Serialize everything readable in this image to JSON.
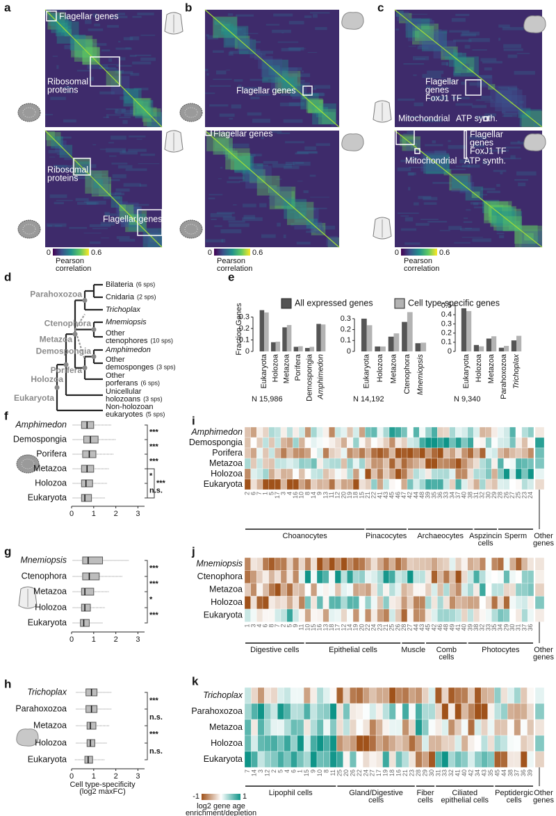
{
  "figure": {
    "correlation_panels": [
      {
        "label": "a",
        "annotations": [
          [
            "Flagellar genes"
          ],
          [
            "Ribosomal",
            "proteins"
          ],
          [
            "Ribosomal",
            "proteins"
          ],
          [
            "Flagellar genes"
          ]
        ],
        "colorbar": {
          "min": 0,
          "max": 0.6,
          "label": [
            "Pearson",
            "correlation"
          ]
        }
      },
      {
        "label": "b",
        "annotations": [
          [
            "Flagellar genes"
          ],
          [
            "Flagellar genes"
          ]
        ],
        "colorbar": {
          "min": 0,
          "max": 0.6,
          "label": [
            "Pearson",
            "correlation"
          ]
        }
      },
      {
        "label": "c",
        "annotations": [
          [
            "Flagellar",
            "genes",
            "FoxJ1 TF"
          ],
          [
            "Mitochondrial"
          ],
          [
            "ATP synth."
          ],
          [
            "Flagellar",
            "genes",
            "FoxJ1 TF"
          ],
          [
            "Mitochondrial"
          ],
          [
            "ATP synth."
          ]
        ],
        "colorbar": {
          "min": 0,
          "max": 0.6,
          "label": [
            "Pearson",
            "correlation"
          ]
        }
      }
    ],
    "tree": {
      "label": "d",
      "leaves": [
        {
          "lines": [
            "Bilateria"
          ],
          "note": "(6 sps)"
        },
        {
          "lines": [
            "Cnidaria"
          ],
          "note": "(2 sps)"
        },
        {
          "lines": [
            "Trichoplax"
          ]
        },
        {
          "lines": [
            "Mnemiopsis"
          ]
        },
        {
          "lines": [
            "Other",
            "ctenophores"
          ],
          "note": "(10 sps)"
        },
        {
          "lines": [
            "Amphimedon"
          ]
        },
        {
          "lines": [
            "Other",
            "demosponges"
          ],
          "note": "(3 sps)"
        },
        {
          "lines": [
            "Other",
            "porferans"
          ],
          "note": "(6 sps)"
        },
        {
          "lines": [
            "Unicellular",
            "holozoans"
          ],
          "note": "(3 sps)"
        },
        {
          "lines": [
            "Non-holozoan",
            "eukaryotes"
          ],
          "note": "(5 sps)"
        }
      ],
      "clades": [
        "Parahoxozoa",
        "Ctenophora",
        "Metazoa",
        "Demospongia",
        "Porifera",
        "Holozoa",
        "Eukaryota"
      ]
    },
    "age_heatmaps": [
      {
        "label": "i",
        "rows": [
          "Amphimedon",
          "Demospongia",
          "Porifera",
          "Metazoa",
          "Holozoa",
          "Eukaryota"
        ],
        "groups": [
          {
            "label": [
              "Choanocytes"
            ],
            "columns": [
              "2",
              "6",
              "7",
              "1",
              "5",
              "17",
              "3",
              "4",
              "16",
              "10",
              "8",
              "14",
              "9",
              "13",
              "11",
              "12",
              "20",
              "19",
              "18",
              "15"
            ]
          },
          {
            "label": [
              "Pinacocytes"
            ],
            "columns": [
              "21",
              "22",
              "41",
              "43",
              "45",
              "46",
              "47"
            ]
          },
          {
            "label": [
              "Archaeocytes"
            ],
            "columns": [
              "42",
              "44",
              "48",
              "39",
              "35",
              "36",
              "33",
              "34",
              "37",
              "40",
              "38"
            ]
          },
          {
            "label": [
              "Aspzincin",
              "cells"
            ],
            "columns": [
              "31",
              "32",
              "30",
              "29"
            ]
          },
          {
            "label": [
              "Sperm"
            ],
            "columns": [
              "28",
              "26",
              "27",
              "25",
              "23",
              "24"
            ]
          }
        ],
        "other": [
          "Other",
          "genes"
        ]
      },
      {
        "label": "j",
        "rows": [
          "Mnemiopsis",
          "Ctenophora",
          "Metazoa",
          "Holozoa",
          "Eukaryota"
        ],
        "groups": [
          {
            "label": [
              "Digestive cells"
            ],
            "columns": [
              "1",
              "3",
              "4",
              "6",
              "8",
              "7",
              "2",
              "5",
              "9",
              "11"
            ]
          },
          {
            "label": [
              "Epithelial cells"
            ],
            "columns": [
              "10",
              "15",
              "16",
              "13",
              "18",
              "17",
              "12",
              "14",
              "19",
              "20",
              "22",
              "24",
              "23",
              "21",
              "25",
              "26"
            ]
          },
          {
            "label": [
              "Muscle"
            ],
            "columns": [
              "28",
              "27",
              "44",
              "43"
            ]
          },
          {
            "label": [
              "Comb",
              "cells"
            ],
            "columns": [
              "45",
              "42",
              "46",
              "48",
              "49",
              "41",
              "40"
            ]
          },
          {
            "label": [
              "Photocytes"
            ],
            "columns": [
              "39",
              "38",
              "32",
              "33",
              "35",
              "34",
              "29",
              "30",
              "31",
              "37",
              "36"
            ]
          }
        ],
        "other": [
          "Other",
          "genes"
        ]
      },
      {
        "label": "k",
        "rows": [
          "Trichoplax",
          "Parahoxozoa",
          "Metazoa",
          "Holozoa",
          "Eukaryota"
        ],
        "groups": [
          {
            "label": [
              "Lipophil cells"
            ],
            "columns": [
              "7",
              "14",
              "3",
              "12",
              "2",
              "5",
              "4",
              "6",
              "1",
              "15",
              "9",
              "10",
              "8",
              "11"
            ]
          },
          {
            "label": [
              "Gland/Digestive",
              "cells"
            ],
            "columns": [
              "25",
              "20",
              "26",
              "22",
              "24",
              "27",
              "17",
              "19",
              "18",
              "16",
              "21",
              "23"
            ]
          },
          {
            "label": [
              "Fiber",
              "cells"
            ],
            "columns": [
              "28",
              "29",
              "30"
            ]
          },
          {
            "label": [
              "Ciliated",
              "epithelial cells"
            ],
            "columns": [
              "31",
              "33",
              "32",
              "41",
              "40",
              "42",
              "34",
              "43",
              "35"
            ]
          },
          {
            "label": [
              "Peptidergic",
              "cells"
            ],
            "columns": [
              "45",
              "44",
              "38",
              "37",
              "36",
              "39"
            ]
          }
        ],
        "other": [
          "Other",
          "genes"
        ],
        "colorbar": {
          "min": -1,
          "max": 1,
          "label": [
            "log2 gene age",
            "enrichment/depletion"
          ]
        }
      }
    ]
  },
  "chart_data": [
    {
      "type": "bar",
      "label": "e",
      "ylabel": "Fraction Genes",
      "note": "N 15,986",
      "categories": [
        "Eukaryota",
        "Holozoa",
        "Metazoa",
        "Porifera",
        "Demospongia",
        "Amphimedon"
      ],
      "series": [
        {
          "name": "All expressed genes",
          "color": "#555555",
          "values": [
            0.36,
            0.08,
            0.21,
            0.04,
            0.03,
            0.24
          ]
        },
        {
          "name": "Cell type-specific genes",
          "color": "#b3b3b3",
          "values": [
            0.34,
            0.085,
            0.23,
            0.045,
            0.04,
            0.235
          ]
        }
      ],
      "ylim": [
        0,
        0.4
      ],
      "yticks": [
        0,
        0.1,
        0.2,
        0.3
      ]
    },
    {
      "type": "bar",
      "note": "N 14,192",
      "categories": [
        "Eukaryota",
        "Holozoa",
        "Metazoa",
        "Ctenophora",
        "Mnemiopsis"
      ],
      "series": [
        {
          "color": "#555555",
          "values": [
            0.3,
            0.045,
            0.135,
            0.27,
            0.075
          ]
        },
        {
          "color": "#b3b3b3",
          "values": [
            0.24,
            0.045,
            0.165,
            0.36,
            0.08
          ]
        }
      ],
      "ylim": [
        0,
        0.42
      ],
      "yticks": [
        0,
        0.1,
        0.2,
        0.3
      ]
    },
    {
      "type": "bar",
      "note": "N 9,340",
      "categories": [
        "Eukaryota",
        "Holozoa",
        "Metazoa",
        "Parahoxozoa",
        "Trichoplax"
      ],
      "series": [
        {
          "color": "#555555",
          "values": [
            0.47,
            0.07,
            0.14,
            0.04,
            0.12
          ]
        },
        {
          "color": "#b3b3b3",
          "values": [
            0.44,
            0.055,
            0.165,
            0.06,
            0.17
          ]
        }
      ],
      "ylim": [
        0,
        0.5
      ],
      "yticks": [
        0,
        0.1,
        0.2,
        0.3,
        0.4,
        0.5
      ]
    },
    {
      "type": "box",
      "label": "f",
      "categories": [
        "Amphimedon",
        "Demospongia",
        "Porifera",
        "Metazoa",
        "Holozoa",
        "Eukaryota"
      ],
      "low": [
        0.05,
        0.05,
        0.05,
        0.05,
        0.05,
        0.05
      ],
      "q1": [
        0.45,
        0.55,
        0.5,
        0.45,
        0.45,
        0.45
      ],
      "median": [
        0.7,
        0.85,
        0.8,
        0.7,
        0.65,
        0.6
      ],
      "q3": [
        1.0,
        1.2,
        1.1,
        1.0,
        0.95,
        0.9
      ],
      "high": [
        1.8,
        2.0,
        1.9,
        1.7,
        1.6,
        1.5
      ],
      "xlim": [
        0,
        3.3
      ],
      "xticks": [
        0,
        1,
        2,
        3
      ],
      "significance": [
        {
          "label": "***",
          "between": [
            "Amphimedon",
            "Demospongia"
          ]
        },
        {
          "label": "***",
          "between": [
            "Demospongia",
            "Porifera"
          ]
        },
        {
          "label": "***",
          "between": [
            "Porifera",
            "Metazoa"
          ]
        },
        {
          "label": "*",
          "between": [
            "Metazoa",
            "Holozoa"
          ]
        },
        {
          "label": "***",
          "between": [
            "Metazoa",
            "Eukaryota"
          ]
        },
        {
          "label": "n.s.",
          "between": [
            "Holozoa",
            "Eukaryota"
          ]
        }
      ]
    },
    {
      "type": "box",
      "label": "g",
      "categories": [
        "Mnemiopsis",
        "Ctenophora",
        "Metazoa",
        "Holozoa",
        "Eukaryota"
      ],
      "low": [
        0.05,
        0.05,
        0.05,
        0.05,
        0.05
      ],
      "q1": [
        0.5,
        0.5,
        0.45,
        0.45,
        0.4
      ],
      "median": [
        0.75,
        0.8,
        0.6,
        0.6,
        0.55
      ],
      "q3": [
        1.4,
        1.25,
        1.0,
        0.85,
        0.8
      ],
      "high": [
        2.6,
        2.3,
        1.7,
        1.5,
        1.4
      ],
      "xlim": [
        0,
        3.3
      ],
      "xticks": [
        0,
        1,
        2,
        3
      ],
      "significance": [
        {
          "label": "***",
          "between": [
            "Mnemiopsis",
            "Ctenophora"
          ]
        },
        {
          "label": "***",
          "between": [
            "Ctenophora",
            "Metazoa"
          ]
        },
        {
          "label": "*",
          "between": [
            "Metazoa",
            "Holozoa"
          ]
        },
        {
          "label": "***",
          "between": [
            "Holozoa",
            "Eukaryota"
          ]
        }
      ]
    },
    {
      "type": "box",
      "label": "h",
      "xlabel": [
        "Cell type-specificity",
        "(log2 maxFC)"
      ],
      "categories": [
        "Trichoplax",
        "Parahoxozoa",
        "Metazoa",
        "Holozoa",
        "Eukaryota"
      ],
      "low": [
        0.2,
        0.2,
        0.2,
        0.2,
        0.15
      ],
      "q1": [
        0.65,
        0.65,
        0.7,
        0.7,
        0.6
      ],
      "median": [
        0.9,
        0.9,
        0.85,
        0.85,
        0.75
      ],
      "q3": [
        1.15,
        1.15,
        1.1,
        1.05,
        0.95
      ],
      "high": [
        1.8,
        1.8,
        1.7,
        1.6,
        1.5
      ],
      "xlim": [
        0,
        3.3
      ],
      "xticks": [
        0,
        1,
        2,
        3
      ],
      "significance": [
        {
          "label": "***",
          "between": [
            "Trichoplax",
            "Parahoxozoa"
          ]
        },
        {
          "label": "n.s.",
          "between": [
            "Parahoxozoa",
            "Metazoa"
          ]
        },
        {
          "label": "***",
          "between": [
            "Metazoa",
            "Holozoa"
          ]
        },
        {
          "label": "n.s.",
          "between": [
            "Holozoa",
            "Eukaryota"
          ]
        }
      ]
    }
  ]
}
